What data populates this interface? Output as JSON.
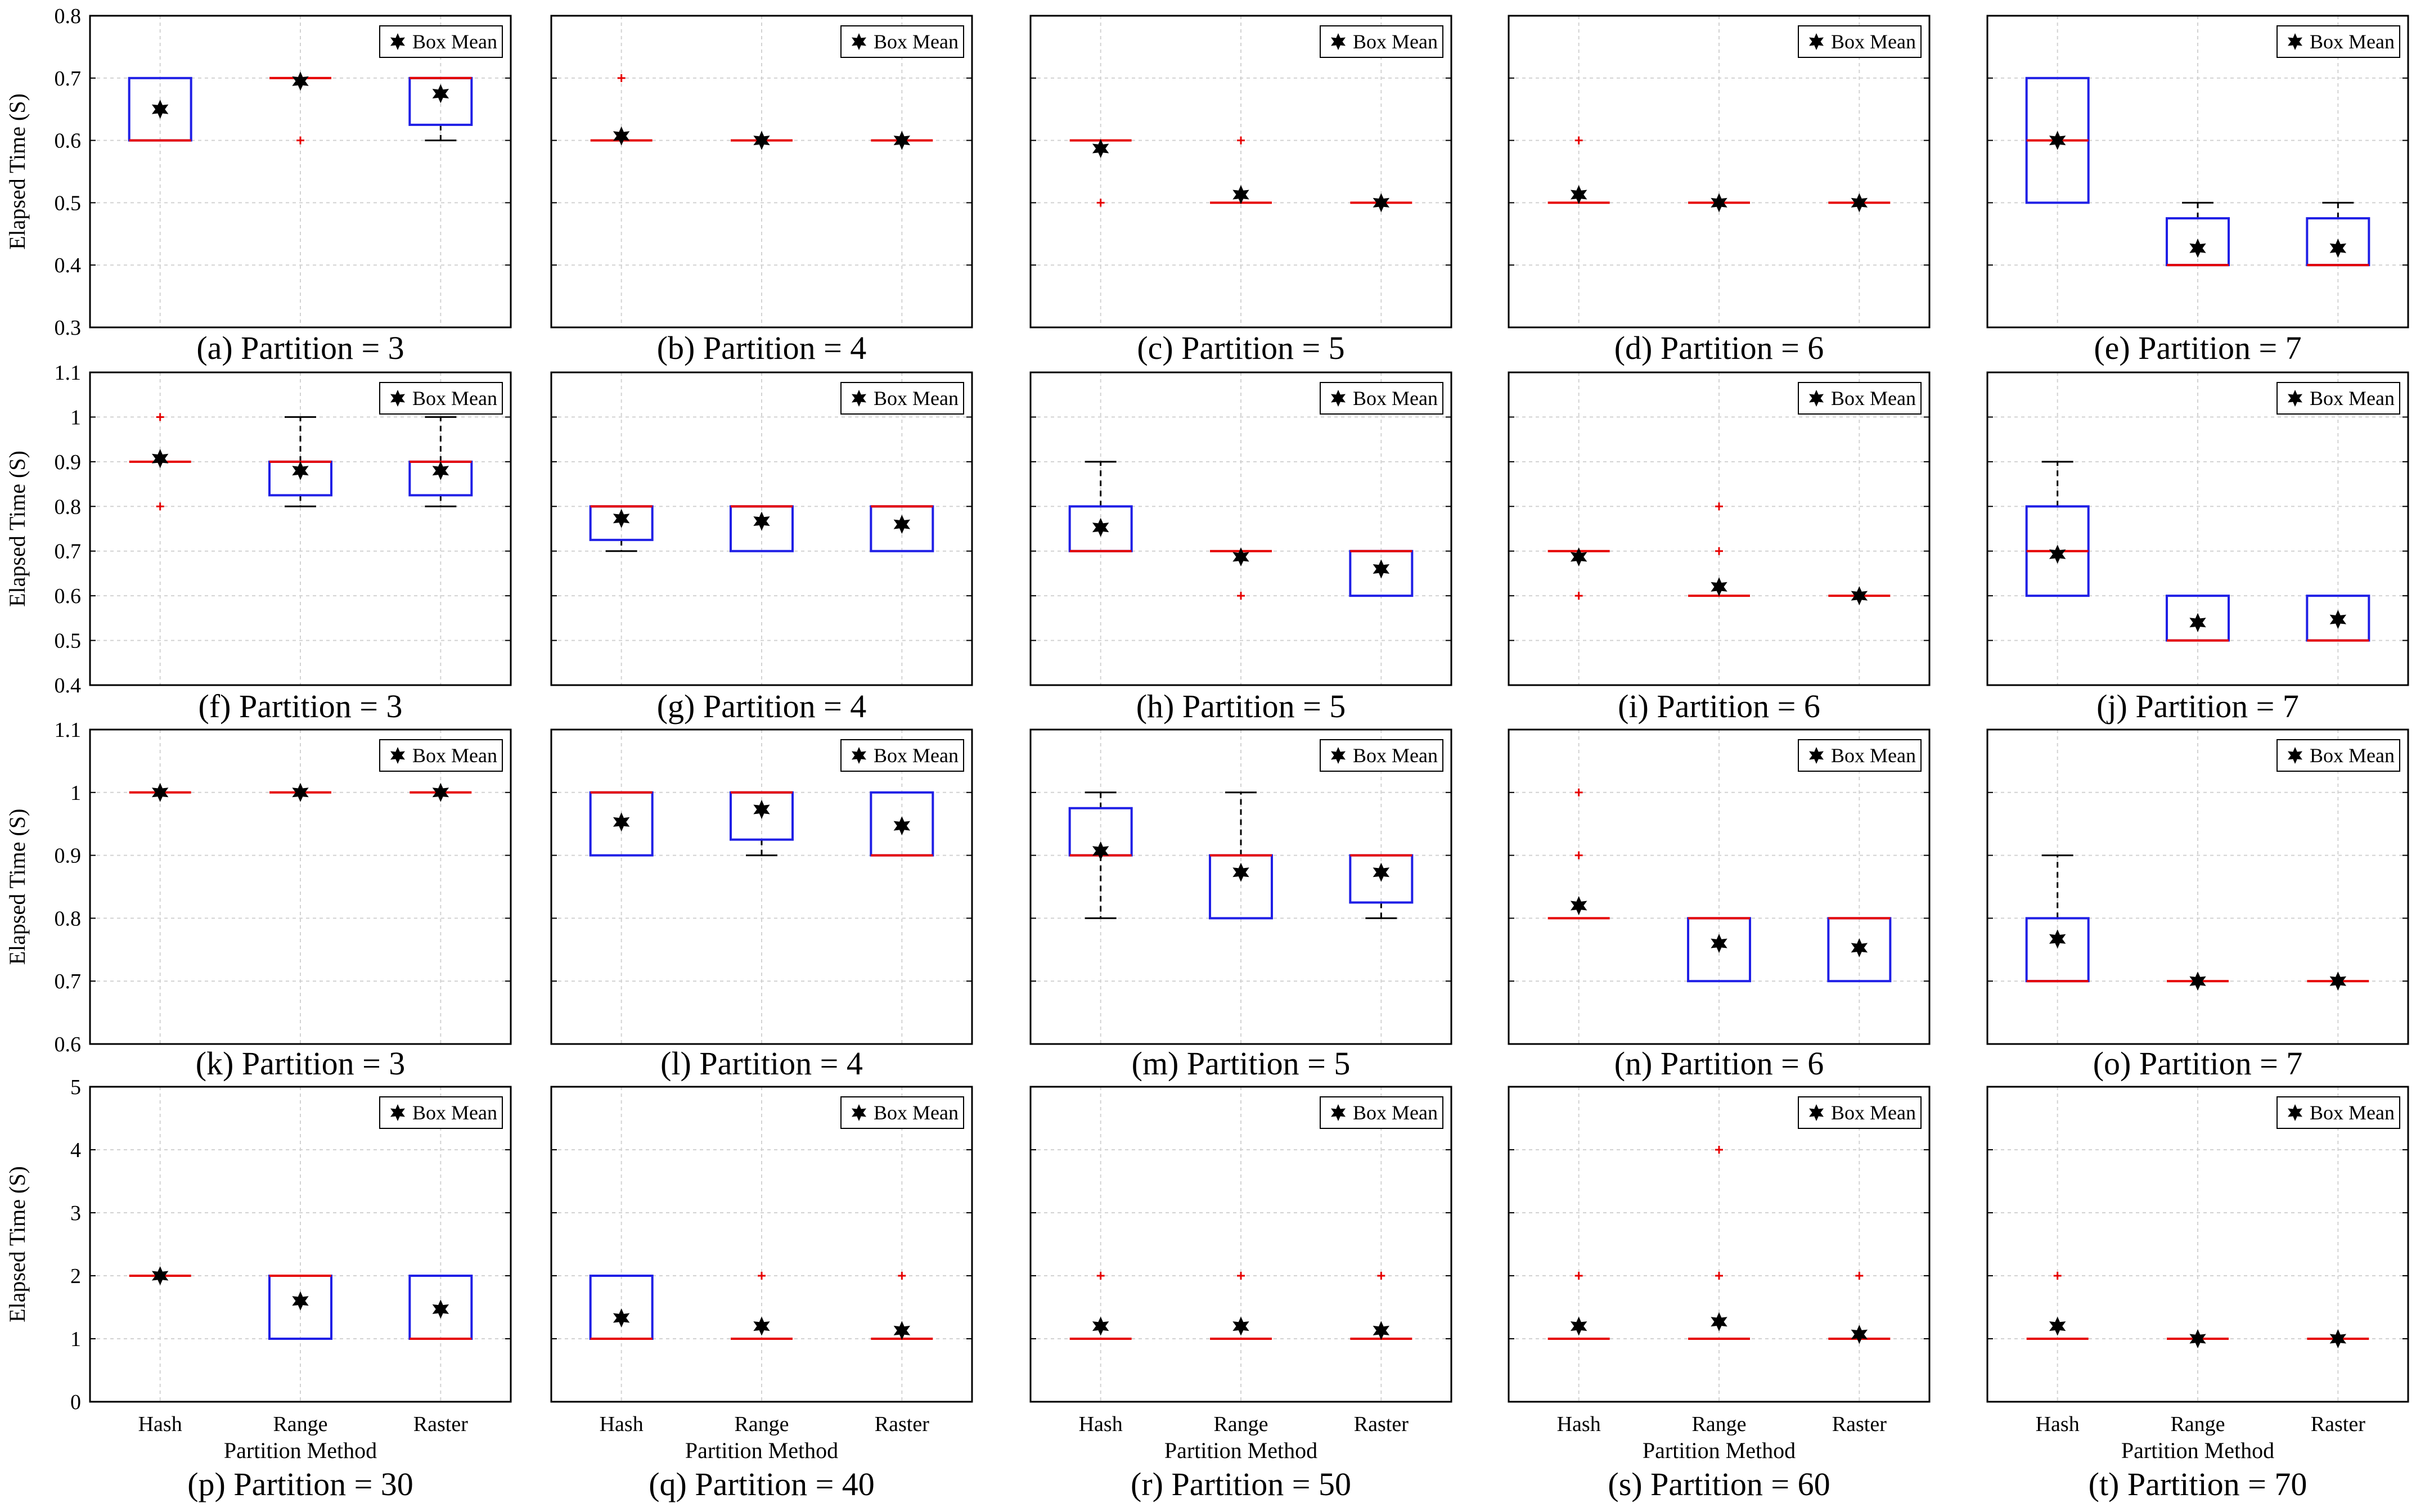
{
  "chart_data": [
    {
      "type": "box",
      "caption": "(a) Partition = 3",
      "ylabel": "Elapsed Time (S)",
      "ylim": [
        0.3,
        0.8
      ],
      "yticks": [
        0.3,
        0.4,
        0.5,
        0.6,
        0.7,
        0.8
      ],
      "categories": [
        "Hash",
        "Range",
        "Raster"
      ],
      "legend": "Box Mean",
      "boxes": [
        {
          "q1": 0.6,
          "med": 0.6,
          "q3": 0.7,
          "wlo": 0.6,
          "whi": 0.7,
          "mean": 0.65,
          "out": []
        },
        {
          "q1": 0.7,
          "med": 0.7,
          "q3": 0.7,
          "wlo": 0.7,
          "whi": 0.7,
          "mean": 0.695,
          "out": [
            0.6
          ]
        },
        {
          "q1": 0.625,
          "med": 0.7,
          "q3": 0.7,
          "wlo": 0.6,
          "whi": 0.7,
          "mean": 0.675,
          "out": []
        }
      ]
    },
    {
      "type": "box",
      "caption": "(b) Partition = 4",
      "ylabel": "",
      "ylim": [
        0.3,
        0.8
      ],
      "yticks": [],
      "categories": [
        "Hash",
        "Range",
        "Raster"
      ],
      "legend": "Box Mean",
      "boxes": [
        {
          "q1": 0.6,
          "med": 0.6,
          "q3": 0.6,
          "wlo": 0.6,
          "whi": 0.6,
          "mean": 0.607,
          "out": [
            0.7
          ]
        },
        {
          "q1": 0.6,
          "med": 0.6,
          "q3": 0.6,
          "wlo": 0.6,
          "whi": 0.6,
          "mean": 0.6,
          "out": []
        },
        {
          "q1": 0.6,
          "med": 0.6,
          "q3": 0.6,
          "wlo": 0.6,
          "whi": 0.6,
          "mean": 0.6,
          "out": []
        }
      ]
    },
    {
      "type": "box",
      "caption": "(c) Partition = 5",
      "ylabel": "",
      "ylim": [
        0.3,
        0.8
      ],
      "yticks": [],
      "categories": [
        "Hash",
        "Range",
        "Raster"
      ],
      "legend": "Box Mean",
      "boxes": [
        {
          "q1": 0.6,
          "med": 0.6,
          "q3": 0.6,
          "wlo": 0.6,
          "whi": 0.6,
          "mean": 0.587,
          "out": [
            0.5
          ]
        },
        {
          "q1": 0.5,
          "med": 0.5,
          "q3": 0.5,
          "wlo": 0.5,
          "whi": 0.5,
          "mean": 0.513,
          "out": [
            0.6
          ]
        },
        {
          "q1": 0.5,
          "med": 0.5,
          "q3": 0.5,
          "wlo": 0.5,
          "whi": 0.5,
          "mean": 0.5,
          "out": []
        }
      ]
    },
    {
      "type": "box",
      "caption": "(d) Partition = 6",
      "ylabel": "",
      "ylim": [
        0.3,
        0.8
      ],
      "yticks": [],
      "categories": [
        "Hash",
        "Range",
        "Raster"
      ],
      "legend": "Box Mean",
      "boxes": [
        {
          "q1": 0.5,
          "med": 0.5,
          "q3": 0.5,
          "wlo": 0.5,
          "whi": 0.5,
          "mean": 0.513,
          "out": [
            0.6
          ]
        },
        {
          "q1": 0.5,
          "med": 0.5,
          "q3": 0.5,
          "wlo": 0.5,
          "whi": 0.5,
          "mean": 0.5,
          "out": []
        },
        {
          "q1": 0.5,
          "med": 0.5,
          "q3": 0.5,
          "wlo": 0.5,
          "whi": 0.5,
          "mean": 0.5,
          "out": []
        }
      ]
    },
    {
      "type": "box",
      "caption": "(e) Partition = 7",
      "ylabel": "",
      "ylim": [
        0.3,
        0.8
      ],
      "yticks": [],
      "categories": [
        "Hash",
        "Range",
        "Raster"
      ],
      "legend": "Box Mean",
      "boxes": [
        {
          "q1": 0.5,
          "med": 0.6,
          "q3": 0.7,
          "wlo": 0.5,
          "whi": 0.7,
          "mean": 0.6,
          "out": []
        },
        {
          "q1": 0.4,
          "med": 0.4,
          "q3": 0.475,
          "wlo": 0.4,
          "whi": 0.5,
          "mean": 0.427,
          "out": []
        },
        {
          "q1": 0.4,
          "med": 0.4,
          "q3": 0.475,
          "wlo": 0.4,
          "whi": 0.5,
          "mean": 0.427,
          "out": []
        }
      ]
    },
    {
      "type": "box",
      "caption": "(f) Partition = 3",
      "ylabel": "Elapsed Time (S)",
      "ylim": [
        0.4,
        1.1
      ],
      "yticks": [
        0.4,
        0.5,
        0.6,
        0.7,
        0.8,
        0.9,
        1,
        1.1
      ],
      "categories": [
        "Hash",
        "Range",
        "Raster"
      ],
      "legend": "Box Mean",
      "boxes": [
        {
          "q1": 0.9,
          "med": 0.9,
          "q3": 0.9,
          "wlo": 0.9,
          "whi": 0.9,
          "mean": 0.907,
          "out": [
            1.0,
            0.8
          ]
        },
        {
          "q1": 0.825,
          "med": 0.9,
          "q3": 0.9,
          "wlo": 0.8,
          "whi": 1.0,
          "mean": 0.88,
          "out": []
        },
        {
          "q1": 0.825,
          "med": 0.9,
          "q3": 0.9,
          "wlo": 0.8,
          "whi": 1.0,
          "mean": 0.88,
          "out": []
        }
      ]
    },
    {
      "type": "box",
      "caption": "(g) Partition = 4",
      "ylabel": "",
      "ylim": [
        0.4,
        1.1
      ],
      "yticks": [],
      "categories": [
        "Hash",
        "Range",
        "Raster"
      ],
      "legend": "Box Mean",
      "boxes": [
        {
          "q1": 0.725,
          "med": 0.8,
          "q3": 0.8,
          "wlo": 0.7,
          "whi": 0.8,
          "mean": 0.773,
          "out": []
        },
        {
          "q1": 0.7,
          "med": 0.8,
          "q3": 0.8,
          "wlo": 0.7,
          "whi": 0.8,
          "mean": 0.767,
          "out": []
        },
        {
          "q1": 0.7,
          "med": 0.8,
          "q3": 0.8,
          "wlo": 0.7,
          "whi": 0.8,
          "mean": 0.76,
          "out": []
        }
      ]
    },
    {
      "type": "box",
      "caption": "(h) Partition = 5",
      "ylabel": "",
      "ylim": [
        0.4,
        1.1
      ],
      "yticks": [],
      "categories": [
        "Hash",
        "Range",
        "Raster"
      ],
      "legend": "Box Mean",
      "boxes": [
        {
          "q1": 0.7,
          "med": 0.7,
          "q3": 0.8,
          "wlo": 0.7,
          "whi": 0.9,
          "mean": 0.753,
          "out": []
        },
        {
          "q1": 0.7,
          "med": 0.7,
          "q3": 0.7,
          "wlo": 0.7,
          "whi": 0.7,
          "mean": 0.687,
          "out": [
            0.6
          ]
        },
        {
          "q1": 0.6,
          "med": 0.7,
          "q3": 0.7,
          "wlo": 0.6,
          "whi": 0.7,
          "mean": 0.66,
          "out": []
        }
      ]
    },
    {
      "type": "box",
      "caption": "(i) Partition = 6",
      "ylabel": "",
      "ylim": [
        0.4,
        1.1
      ],
      "yticks": [],
      "categories": [
        "Hash",
        "Range",
        "Raster"
      ],
      "legend": "Box Mean",
      "boxes": [
        {
          "q1": 0.7,
          "med": 0.7,
          "q3": 0.7,
          "wlo": 0.7,
          "whi": 0.7,
          "mean": 0.687,
          "out": [
            0.6
          ]
        },
        {
          "q1": 0.6,
          "med": 0.6,
          "q3": 0.6,
          "wlo": 0.6,
          "whi": 0.6,
          "mean": 0.62,
          "out": [
            0.8,
            0.7
          ]
        },
        {
          "q1": 0.6,
          "med": 0.6,
          "q3": 0.6,
          "wlo": 0.6,
          "whi": 0.6,
          "mean": 0.6,
          "out": []
        }
      ]
    },
    {
      "type": "box",
      "caption": "(j) Partition = 7",
      "ylabel": "",
      "ylim": [
        0.4,
        1.1
      ],
      "yticks": [],
      "categories": [
        "Hash",
        "Range",
        "Raster"
      ],
      "legend": "Box Mean",
      "boxes": [
        {
          "q1": 0.6,
          "med": 0.7,
          "q3": 0.8,
          "wlo": 0.6,
          "whi": 0.9,
          "mean": 0.693,
          "out": []
        },
        {
          "q1": 0.5,
          "med": 0.5,
          "q3": 0.6,
          "wlo": 0.5,
          "whi": 0.6,
          "mean": 0.54,
          "out": []
        },
        {
          "q1": 0.5,
          "med": 0.5,
          "q3": 0.6,
          "wlo": 0.5,
          "whi": 0.6,
          "mean": 0.547,
          "out": []
        }
      ]
    },
    {
      "type": "box",
      "caption": "(k) Partition = 3",
      "ylabel": "Elapsed Time (S)",
      "ylim": [
        0.6,
        1.1
      ],
      "yticks": [
        0.6,
        0.7,
        0.8,
        0.9,
        1,
        1.1
      ],
      "categories": [
        "Hash",
        "Range",
        "Raster"
      ],
      "legend": "Box Mean",
      "boxes": [
        {
          "q1": 1.0,
          "med": 1.0,
          "q3": 1.0,
          "wlo": 1.0,
          "whi": 1.0,
          "mean": 1.0,
          "out": []
        },
        {
          "q1": 1.0,
          "med": 1.0,
          "q3": 1.0,
          "wlo": 1.0,
          "whi": 1.0,
          "mean": 1.0,
          "out": []
        },
        {
          "q1": 1.0,
          "med": 1.0,
          "q3": 1.0,
          "wlo": 1.0,
          "whi": 1.0,
          "mean": 1.0,
          "out": []
        }
      ]
    },
    {
      "type": "box",
      "caption": "(l) Partition = 4",
      "ylabel": "",
      "ylim": [
        0.6,
        1.1
      ],
      "yticks": [],
      "categories": [
        "Hash",
        "Range",
        "Raster"
      ],
      "legend": "Box Mean",
      "boxes": [
        {
          "q1": 0.9,
          "med": 1.0,
          "q3": 1.0,
          "wlo": 0.9,
          "whi": 1.0,
          "mean": 0.953,
          "out": []
        },
        {
          "q1": 0.925,
          "med": 1.0,
          "q3": 1.0,
          "wlo": 0.9,
          "whi": 1.0,
          "mean": 0.973,
          "out": []
        },
        {
          "q1": 0.9,
          "med": 0.9,
          "q3": 1.0,
          "wlo": 0.9,
          "whi": 1.0,
          "mean": 0.947,
          "out": []
        }
      ]
    },
    {
      "type": "box",
      "caption": "(m) Partition = 5",
      "ylabel": "",
      "ylim": [
        0.6,
        1.1
      ],
      "yticks": [],
      "categories": [
        "Hash",
        "Range",
        "Raster"
      ],
      "legend": "Box Mean",
      "boxes": [
        {
          "q1": 0.9,
          "med": 0.9,
          "q3": 0.975,
          "wlo": 0.8,
          "whi": 1.0,
          "mean": 0.907,
          "out": []
        },
        {
          "q1": 0.8,
          "med": 0.9,
          "q3": 0.9,
          "wlo": 0.8,
          "whi": 1.0,
          "mean": 0.873,
          "out": []
        },
        {
          "q1": 0.825,
          "med": 0.9,
          "q3": 0.9,
          "wlo": 0.8,
          "whi": 0.9,
          "mean": 0.873,
          "out": []
        }
      ]
    },
    {
      "type": "box",
      "caption": "(n) Partition = 6",
      "ylabel": "",
      "ylim": [
        0.6,
        1.1
      ],
      "yticks": [],
      "categories": [
        "Hash",
        "Range",
        "Raster"
      ],
      "legend": "Box Mean",
      "boxes": [
        {
          "q1": 0.8,
          "med": 0.8,
          "q3": 0.8,
          "wlo": 0.8,
          "whi": 0.8,
          "mean": 0.82,
          "out": [
            1.0,
            0.9
          ]
        },
        {
          "q1": 0.7,
          "med": 0.8,
          "q3": 0.8,
          "wlo": 0.7,
          "whi": 0.8,
          "mean": 0.76,
          "out": []
        },
        {
          "q1": 0.7,
          "med": 0.8,
          "q3": 0.8,
          "wlo": 0.7,
          "whi": 0.8,
          "mean": 0.753,
          "out": []
        }
      ]
    },
    {
      "type": "box",
      "caption": "(o) Partition = 7",
      "ylabel": "",
      "ylim": [
        0.6,
        1.1
      ],
      "yticks": [],
      "categories": [
        "Hash",
        "Range",
        "Raster"
      ],
      "legend": "Box Mean",
      "boxes": [
        {
          "q1": 0.7,
          "med": 0.7,
          "q3": 0.8,
          "wlo": 0.7,
          "whi": 0.9,
          "mean": 0.767,
          "out": []
        },
        {
          "q1": 0.7,
          "med": 0.7,
          "q3": 0.7,
          "wlo": 0.7,
          "whi": 0.7,
          "mean": 0.7,
          "out": []
        },
        {
          "q1": 0.7,
          "med": 0.7,
          "q3": 0.7,
          "wlo": 0.7,
          "whi": 0.7,
          "mean": 0.7,
          "out": []
        }
      ]
    },
    {
      "type": "box",
      "caption": "(p) Partition = 30",
      "ylabel": "Elapsed Time (S)",
      "xlabel": "Partition Method",
      "ylim": [
        0,
        5
      ],
      "yticks": [
        0,
        1,
        2,
        3,
        4,
        5
      ],
      "categories": [
        "Hash",
        "Range",
        "Raster"
      ],
      "legend": "Box Mean",
      "boxes": [
        {
          "q1": 2,
          "med": 2,
          "q3": 2,
          "wlo": 2,
          "whi": 2,
          "mean": 2.0,
          "out": []
        },
        {
          "q1": 1,
          "med": 2,
          "q3": 2,
          "wlo": 1,
          "whi": 2,
          "mean": 1.6,
          "out": []
        },
        {
          "q1": 1,
          "med": 1,
          "q3": 2,
          "wlo": 1,
          "whi": 2,
          "mean": 1.47,
          "out": []
        }
      ]
    },
    {
      "type": "box",
      "caption": "(q) Partition = 40",
      "ylabel": "",
      "xlabel": "Partition Method",
      "ylim": [
        0,
        5
      ],
      "yticks": [],
      "categories": [
        "Hash",
        "Range",
        "Raster"
      ],
      "legend": "Box Mean",
      "boxes": [
        {
          "q1": 1,
          "med": 1,
          "q3": 2,
          "wlo": 1,
          "whi": 2,
          "mean": 1.33,
          "out": []
        },
        {
          "q1": 1,
          "med": 1,
          "q3": 1,
          "wlo": 1,
          "whi": 1,
          "mean": 1.2,
          "out": [
            2
          ]
        },
        {
          "q1": 1,
          "med": 1,
          "q3": 1,
          "wlo": 1,
          "whi": 1,
          "mean": 1.13,
          "out": [
            2
          ]
        }
      ]
    },
    {
      "type": "box",
      "caption": "(r) Partition = 50",
      "ylabel": "",
      "xlabel": "Partition Method",
      "ylim": [
        0,
        5
      ],
      "yticks": [],
      "categories": [
        "Hash",
        "Range",
        "Raster"
      ],
      "legend": "Box Mean",
      "boxes": [
        {
          "q1": 1,
          "med": 1,
          "q3": 1,
          "wlo": 1,
          "whi": 1,
          "mean": 1.2,
          "out": [
            2
          ]
        },
        {
          "q1": 1,
          "med": 1,
          "q3": 1,
          "wlo": 1,
          "whi": 1,
          "mean": 1.2,
          "out": [
            2
          ]
        },
        {
          "q1": 1,
          "med": 1,
          "q3": 1,
          "wlo": 1,
          "whi": 1,
          "mean": 1.13,
          "out": [
            2
          ]
        }
      ]
    },
    {
      "type": "box",
      "caption": "(s) Partition = 60",
      "ylabel": "",
      "xlabel": "Partition Method",
      "ylim": [
        0,
        5
      ],
      "yticks": [],
      "categories": [
        "Hash",
        "Range",
        "Raster"
      ],
      "legend": "Box Mean",
      "boxes": [
        {
          "q1": 1,
          "med": 1,
          "q3": 1,
          "wlo": 1,
          "whi": 1,
          "mean": 1.2,
          "out": [
            2
          ]
        },
        {
          "q1": 1,
          "med": 1,
          "q3": 1,
          "wlo": 1,
          "whi": 1,
          "mean": 1.27,
          "out": [
            4,
            2
          ]
        },
        {
          "q1": 1,
          "med": 1,
          "q3": 1,
          "wlo": 1,
          "whi": 1,
          "mean": 1.07,
          "out": [
            2
          ]
        }
      ]
    },
    {
      "type": "box",
      "caption": "(t) Partition = 70",
      "ylabel": "",
      "xlabel": "Partition Method",
      "ylim": [
        0,
        5
      ],
      "yticks": [],
      "categories": [
        "Hash",
        "Range",
        "Raster"
      ],
      "legend": "Box Mean",
      "boxes": [
        {
          "q1": 1,
          "med": 1,
          "q3": 1,
          "wlo": 1,
          "whi": 1,
          "mean": 1.2,
          "out": [
            2
          ]
        },
        {
          "q1": 1,
          "med": 1,
          "q3": 1,
          "wlo": 1,
          "whi": 1,
          "mean": 1.0,
          "out": []
        },
        {
          "q1": 1,
          "med": 1,
          "q3": 1,
          "wlo": 1,
          "whi": 1,
          "mean": 1.0,
          "out": []
        }
      ]
    }
  ],
  "colors": {
    "box": "#1f1fe6",
    "median": "#e60000",
    "outlier": "#e60000",
    "whisker": "#000000",
    "grid": "#d2d2d2",
    "axis": "#000000",
    "mean": "#000000"
  }
}
